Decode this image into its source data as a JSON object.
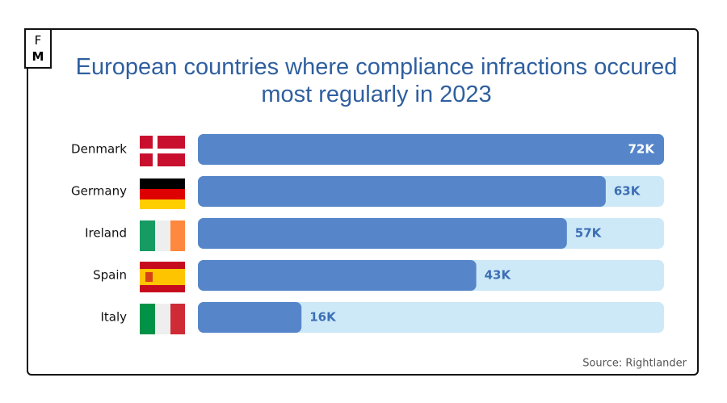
{
  "logo": {
    "top": "F",
    "bottom": "M"
  },
  "chart_data": {
    "type": "bar",
    "orientation": "horizontal",
    "title": "European countries where compliance infractions occured most regularly in 2023",
    "categories": [
      "Denmark",
      "Germany",
      "Ireland",
      "Spain",
      "Italy"
    ],
    "values": [
      72000,
      63000,
      57000,
      43000,
      16000
    ],
    "value_labels": [
      "72K",
      "63K",
      "57K",
      "43K",
      "16K"
    ],
    "xlim": [
      0,
      72000
    ],
    "color": "#5686c9",
    "track_color": "#cde9f8",
    "label_color": "#3d6fb5",
    "source": "Source: Rightlander"
  }
}
